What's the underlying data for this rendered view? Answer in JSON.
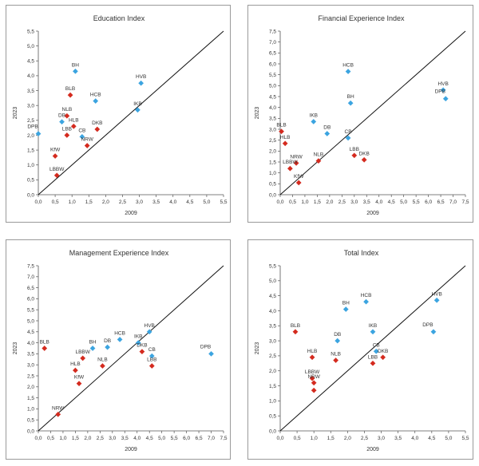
{
  "colors": {
    "blue": "#3BA4E0",
    "red": "#D42A1E",
    "diagonal": "#111111",
    "frame": "#9a9a9a"
  },
  "chart_data": [
    {
      "type": "scatter",
      "title": "Education Index",
      "xlabel": "2009",
      "ylabel": "2023",
      "xlim": [
        0,
        5.5
      ],
      "ylim": [
        0,
        5.5
      ],
      "xticks": [
        "0,0",
        "0,5",
        "1,0",
        "1,5",
        "2,0",
        "2,5",
        "3,0",
        "3,5",
        "4,0",
        "4,5",
        "5,0",
        "5,5"
      ],
      "yticks": [
        "0,0",
        "0,5",
        "1,0",
        "1,5",
        "2,0",
        "2,5",
        "3,0",
        "3,5",
        "4,0",
        "4,5",
        "5,0",
        "5,5"
      ],
      "reference_line": "y = x",
      "points": [
        {
          "label": "BH",
          "x": 1.1,
          "y": 4.15,
          "color": "blue"
        },
        {
          "label": "HVB",
          "x": 3.05,
          "y": 3.75,
          "color": "blue"
        },
        {
          "label": "BLB",
          "x": 0.95,
          "y": 3.35,
          "color": "red"
        },
        {
          "label": "HCB",
          "x": 1.7,
          "y": 3.15,
          "color": "blue"
        },
        {
          "label": "IKB",
          "x": 2.95,
          "y": 2.85,
          "color": "blue"
        },
        {
          "label": "NLB",
          "x": 0.85,
          "y": 2.65,
          "color": "red"
        },
        {
          "label": "DB",
          "x": 0.7,
          "y": 2.45,
          "color": "blue"
        },
        {
          "label": "HLB",
          "x": 1.05,
          "y": 2.3,
          "color": "red"
        },
        {
          "label": "DKB",
          "x": 1.75,
          "y": 2.2,
          "color": "red"
        },
        {
          "label": "LBB",
          "x": 0.85,
          "y": 2.0,
          "color": "red"
        },
        {
          "label": "CB",
          "x": 1.3,
          "y": 1.95,
          "color": "blue"
        },
        {
          "label": "DPB",
          "x": 0.0,
          "y": 2.05,
          "color": "blue"
        },
        {
          "label": "NRW",
          "x": 1.45,
          "y": 1.65,
          "color": "red"
        },
        {
          "label": "KfW",
          "x": 0.5,
          "y": 1.3,
          "color": "red"
        },
        {
          "label": "LBBW",
          "x": 0.55,
          "y": 0.65,
          "color": "red"
        }
      ]
    },
    {
      "type": "scatter",
      "title": "Financial Experience Index",
      "xlabel": "2009",
      "ylabel": "2023",
      "xlim": [
        0,
        7.5
      ],
      "ylim": [
        0,
        7.5
      ],
      "xticks": [
        "0,0",
        "0,5",
        "1,0",
        "1,5",
        "2,0",
        "2,5",
        "3,0",
        "3,5",
        "4,0",
        "4,5",
        "5,0",
        "5,5",
        "6,0",
        "6,5",
        "7,0",
        "7,5"
      ],
      "yticks": [
        "0,0",
        "0,5",
        "1,0",
        "1,5",
        "2,0",
        "2,5",
        "3,0",
        "3,5",
        "4,0",
        "4,5",
        "5,0",
        "5,5",
        "6,0",
        "6,5",
        "7,0",
        "7,5"
      ],
      "reference_line": "y = x",
      "points": [
        {
          "label": "HCB",
          "x": 2.75,
          "y": 5.65,
          "color": "blue"
        },
        {
          "label": "HVB",
          "x": 6.6,
          "y": 4.8,
          "color": "blue"
        },
        {
          "label": "DPB",
          "x": 6.7,
          "y": 4.4,
          "color": "blue"
        },
        {
          "label": "BH",
          "x": 2.85,
          "y": 4.2,
          "color": "blue"
        },
        {
          "label": "IKB",
          "x": 1.35,
          "y": 3.35,
          "color": "blue"
        },
        {
          "label": "DB",
          "x": 1.9,
          "y": 2.8,
          "color": "blue"
        },
        {
          "label": "BLB",
          "x": 0.05,
          "y": 2.9,
          "color": "red"
        },
        {
          "label": "HLB",
          "x": 0.2,
          "y": 2.35,
          "color": "red"
        },
        {
          "label": "CB",
          "x": 2.75,
          "y": 2.6,
          "color": "blue"
        },
        {
          "label": "LBB",
          "x": 3.0,
          "y": 1.8,
          "color": "red"
        },
        {
          "label": "DKB",
          "x": 3.4,
          "y": 1.6,
          "color": "red"
        },
        {
          "label": "NLB",
          "x": 1.55,
          "y": 1.55,
          "color": "red"
        },
        {
          "label": "NRW",
          "x": 0.65,
          "y": 1.45,
          "color": "red"
        },
        {
          "label": "LBBW",
          "x": 0.4,
          "y": 1.2,
          "color": "red"
        },
        {
          "label": "KfW",
          "x": 0.75,
          "y": 0.55,
          "color": "red"
        }
      ]
    },
    {
      "type": "scatter",
      "title": "Management Experience Index",
      "xlabel": "2009",
      "ylabel": "2023",
      "xlim": [
        0,
        7.5
      ],
      "ylim": [
        0,
        7.5
      ],
      "xticks": [
        "0,0",
        "0,5",
        "1,0",
        "1,5",
        "2,0",
        "2,5",
        "3,0",
        "3,5",
        "4,0",
        "4,5",
        "5,0",
        "5,5",
        "6,0",
        "6,5",
        "7,0",
        "7,5"
      ],
      "yticks": [
        "0,0",
        "0,5",
        "1,0",
        "1,5",
        "2,0",
        "2,5",
        "3,0",
        "3,5",
        "4,0",
        "4,5",
        "5,0",
        "5,5",
        "6,0",
        "6,5",
        "7,0",
        "7,5"
      ],
      "reference_line": "y = x",
      "points": [
        {
          "label": "BLB",
          "x": 0.25,
          "y": 3.75,
          "color": "red"
        },
        {
          "label": "HVB",
          "x": 4.5,
          "y": 4.5,
          "color": "blue"
        },
        {
          "label": "HCB",
          "x": 3.3,
          "y": 4.15,
          "color": "blue"
        },
        {
          "label": "IKB",
          "x": 4.05,
          "y": 4.0,
          "color": "blue"
        },
        {
          "label": "BH",
          "x": 2.2,
          "y": 3.75,
          "color": "blue"
        },
        {
          "label": "DB",
          "x": 2.8,
          "y": 3.8,
          "color": "blue"
        },
        {
          "label": "DKB",
          "x": 4.2,
          "y": 3.6,
          "color": "red"
        },
        {
          "label": "CB",
          "x": 4.6,
          "y": 3.4,
          "color": "blue"
        },
        {
          "label": "DPB",
          "x": 7.0,
          "y": 3.5,
          "color": "blue"
        },
        {
          "label": "LBBW",
          "x": 1.8,
          "y": 3.3,
          "color": "red"
        },
        {
          "label": "NLB",
          "x": 2.6,
          "y": 2.95,
          "color": "red"
        },
        {
          "label": "HLB",
          "x": 1.5,
          "y": 2.75,
          "color": "red"
        },
        {
          "label": "LBB",
          "x": 4.6,
          "y": 2.95,
          "color": "red"
        },
        {
          "label": "KfW",
          "x": 1.65,
          "y": 2.15,
          "color": "red"
        },
        {
          "label": "NRW",
          "x": 0.8,
          "y": 0.75,
          "color": "red"
        }
      ]
    },
    {
      "type": "scatter",
      "title": "Total Index",
      "xlabel": "2009",
      "ylabel": "2023",
      "xlim": [
        0,
        5.5
      ],
      "ylim": [
        0,
        5.5
      ],
      "xticks": [
        "0,0",
        "0,5",
        "1,0",
        "1,5",
        "2,0",
        "2,5",
        "3,0",
        "3,5",
        "4,0",
        "4,5",
        "5,0",
        "5,5"
      ],
      "yticks": [
        "0,0",
        "0,5",
        "1,0",
        "1,5",
        "2,0",
        "2,5",
        "3,0",
        "3,5",
        "4,0",
        "4,5",
        "5,0",
        "5,5"
      ],
      "reference_line": "y = x",
      "points": [
        {
          "label": "HVB",
          "x": 4.65,
          "y": 4.35,
          "color": "blue"
        },
        {
          "label": "HCB",
          "x": 2.55,
          "y": 4.3,
          "color": "blue"
        },
        {
          "label": "BH",
          "x": 1.95,
          "y": 4.05,
          "color": "blue"
        },
        {
          "label": "BLB",
          "x": 0.45,
          "y": 3.3,
          "color": "red"
        },
        {
          "label": "IKB",
          "x": 2.75,
          "y": 3.3,
          "color": "blue"
        },
        {
          "label": "DPB",
          "x": 4.55,
          "y": 3.3,
          "color": "blue"
        },
        {
          "label": "DB",
          "x": 1.7,
          "y": 3.0,
          "color": "blue"
        },
        {
          "label": "CB",
          "x": 2.85,
          "y": 2.65,
          "color": "blue"
        },
        {
          "label": "DKB",
          "x": 3.05,
          "y": 2.45,
          "color": "red"
        },
        {
          "label": "HLB",
          "x": 0.95,
          "y": 2.45,
          "color": "red"
        },
        {
          "label": "NLB",
          "x": 1.65,
          "y": 2.35,
          "color": "red"
        },
        {
          "label": "LBB",
          "x": 2.75,
          "y": 2.25,
          "color": "red"
        },
        {
          "label": "LBBW",
          "x": 0.95,
          "y": 1.75,
          "color": "red"
        },
        {
          "label": "NRW",
          "x": 1.0,
          "y": 1.6,
          "color": "red"
        },
        {
          "label": "",
          "x": 1.0,
          "y": 1.35,
          "color": "red"
        }
      ]
    }
  ]
}
